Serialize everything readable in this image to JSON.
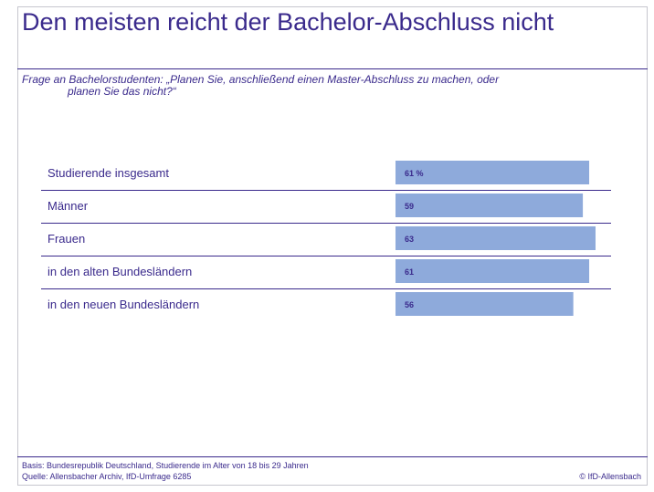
{
  "chart_data": {
    "type": "bar",
    "orientation": "horizontal",
    "title": "Den meisten reicht der Bachelor-Abschluss nicht",
    "subtitle": "Frage an Bachelorstudenten: „Planen Sie, anschließend einen Master-Abschluss zu machen, oder planen Sie das nicht?“",
    "categories": [
      "Studierende insgesamt",
      "Männer",
      "Frauen",
      "in den alten Bundesländern",
      "in den neuen Bundesländern"
    ],
    "values": [
      61,
      59,
      63,
      61,
      56
    ],
    "value_labels": [
      "61 %",
      "59",
      "63",
      "61",
      "56"
    ],
    "xlim": [
      0,
      63
    ],
    "grid": false,
    "bar_color": "#8eaadb",
    "text_color": "#3a2a8c"
  },
  "footer": {
    "basis": "Basis: Bundesrepublik Deutschland, Studierende im Alter von 18 bis 29 Jahren",
    "source": "Quelle: Allensbacher Archiv, IfD-Umfrage 6285",
    "copyright": "© IfD-Allensbach"
  }
}
